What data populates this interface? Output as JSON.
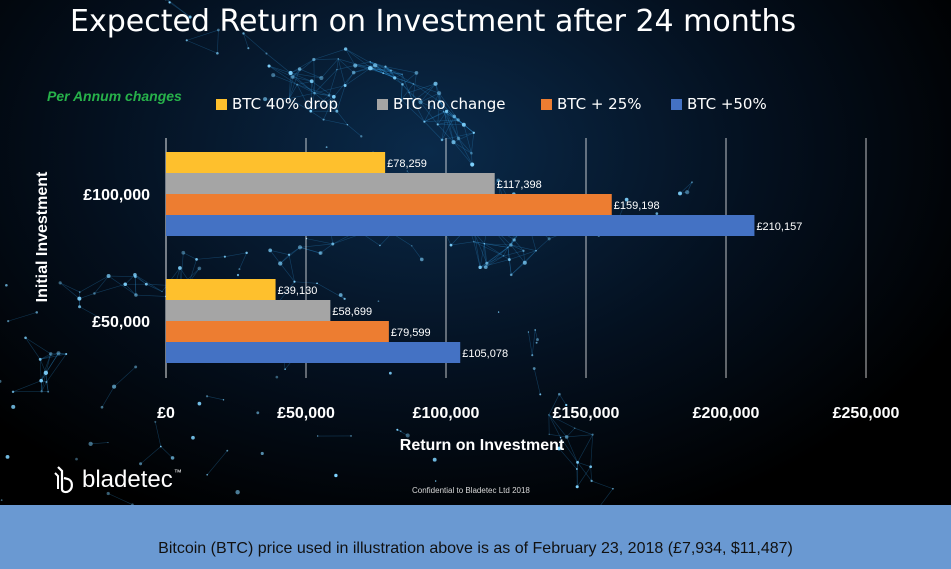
{
  "title": "Expected Return on Investment after 24 months",
  "subtitle": "Per Annum changes",
  "footer_note": "Bitcoin (BTC) price used in illustration above is as of February 23, 2018 (£7,934, $11,487)",
  "confidential": "Confidential to Bladetec Ltd 2018",
  "logo": {
    "name": "bladetec",
    "tm": "™"
  },
  "colors": {
    "background": "#04101f",
    "footer_bar": "#6a99d2",
    "subtitle": "#27b24a"
  },
  "chart_data": {
    "type": "bar",
    "orientation": "horizontal",
    "xlabel": "Return on Investment",
    "ylabel": "Initial Investment",
    "xlim": [
      0,
      250000
    ],
    "x_ticks": [
      "£0",
      "£50,000",
      "£100,000",
      "£150,000",
      "£200,000",
      "£250,000"
    ],
    "x_tick_values": [
      0,
      50000,
      100000,
      150000,
      200000,
      250000
    ],
    "grid": "vertical",
    "legend_position": "top",
    "categories": [
      "£100,000",
      "£50,000"
    ],
    "series": [
      {
        "name": "BTC 40% drop",
        "color": "#fec02d",
        "values": [
          78259,
          39130
        ],
        "labels": [
          "£78,259",
          "£39,130"
        ]
      },
      {
        "name": "BTC no change",
        "color": "#a5a5a5",
        "values": [
          117398,
          58699
        ],
        "labels": [
          "£117,398",
          "£58,699"
        ]
      },
      {
        "name": "BTC + 25%",
        "color": "#ed7d31",
        "values": [
          159198,
          79599
        ],
        "labels": [
          "£159,198",
          "£79,599"
        ]
      },
      {
        "name": "BTC +50%",
        "color": "#4472c4",
        "values": [
          210157,
          105078
        ],
        "labels": [
          "£210,157",
          "£105,078"
        ]
      }
    ]
  }
}
